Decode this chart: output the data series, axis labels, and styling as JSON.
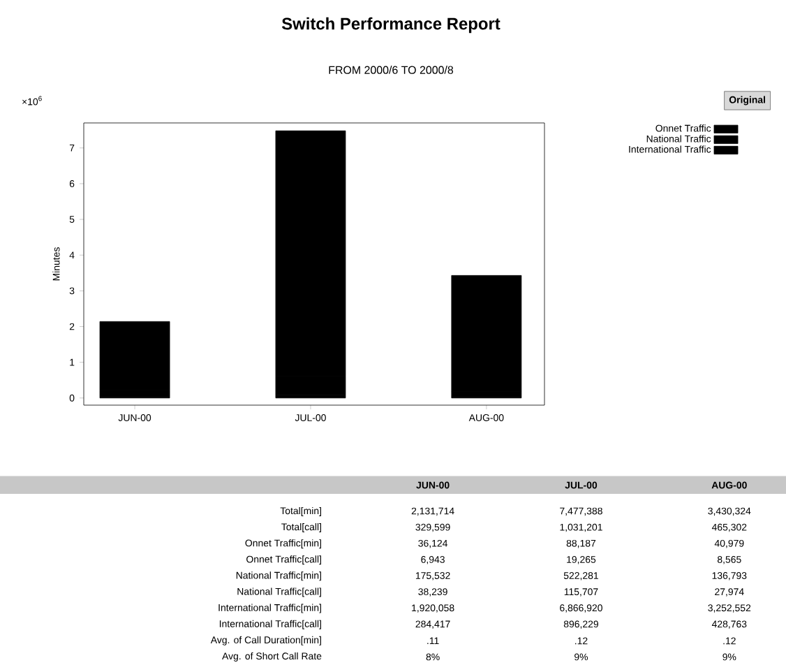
{
  "chart_data": [
    {
      "type": "bar",
      "title": "Switch Performance Report",
      "subtitle": "FROM 2000/6 TO 2000/8",
      "ylabel": "Minutes",
      "annotations": [
        "×10$^{6}$",
        "Original"
      ],
      "categories": [
        "JUN-00",
        "JUL-00",
        "AUG-00"
      ],
      "stacked": true,
      "legend": "top right",
      "series": [
        {
          "name": "Onnet Traffic",
          "color": "#000000",
          "values": [
            0.04,
            0.09,
            0.04
          ]
        },
        {
          "name": "National Traffic",
          "color": "#000000",
          "values": [
            0.18,
            0.52,
            0.14
          ]
        },
        {
          "name": "International Traffic",
          "color": "#000000",
          "values": [
            1.92,
            6.87,
            3.25
          ]
        }
      ],
      "ylim": [
        -0.2,
        7.7
      ],
      "yticks": [
        0,
        1,
        2,
        3,
        4,
        5,
        6,
        7
      ]
    },
    {
      "type": "heatmap",
      "categories": [
        "JUN-00",
        "JUL-00",
        "AUG-00"
      ],
      "y_categories": [
        "Total[min]",
        "Total[call]",
        "Onnet Traffic[min]",
        "Onnet Traffic[call]",
        "National Traffic[min]",
        "National Traffic[call]",
        "International Traffic[min]",
        "International Traffic[call]",
        "Avg. of Call Duration[min]",
        "Avg. of Short Call Rate"
      ],
      "cells": [
        [
          "2,131,714",
          "7,477,388",
          "3,430,324"
        ],
        [
          "329,599",
          "1,031,201",
          "465,302"
        ],
        [
          "36,124",
          "88,187",
          "40,979"
        ],
        [
          "6,943",
          "19,265",
          "8,565"
        ],
        [
          "175,532",
          "522,281",
          "136,793"
        ],
        [
          "38,239",
          "115,707",
          "27,974"
        ],
        [
          "1,920,058",
          "6,866,920",
          "3,252,552"
        ],
        [
          "284,417",
          "896,229",
          "428,763"
        ],
        [
          ".11",
          ".12",
          ".12"
        ],
        [
          "8%",
          "9%",
          "9%"
        ]
      ]
    }
  ]
}
